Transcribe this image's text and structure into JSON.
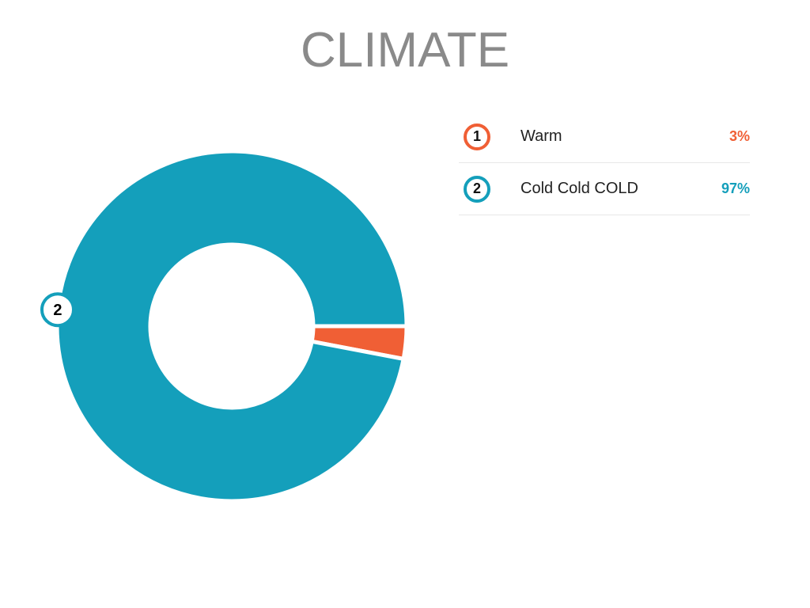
{
  "title": "CLIMATE",
  "chart_data": {
    "type": "pie",
    "variant": "donut",
    "title": "CLIMATE",
    "categories": [
      "Warm",
      "Cold Cold COLD"
    ],
    "values": [
      3,
      97
    ],
    "value_labels": [
      "3%",
      "97%"
    ],
    "markers": [
      "1",
      "2"
    ],
    "colors": [
      "#f05f35",
      "#149fbb"
    ],
    "legend_position": "right"
  }
}
